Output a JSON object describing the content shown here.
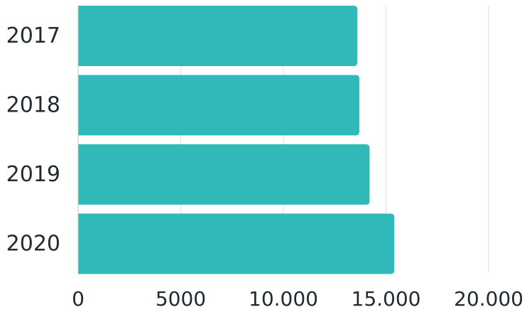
{
  "chart_data": {
    "type": "bar",
    "orientation": "horizontal",
    "categories": [
      "2017",
      "2018",
      "2019",
      "2020"
    ],
    "values": [
      13600,
      13700,
      14200,
      15400
    ],
    "xlim": [
      0,
      20000
    ],
    "xticks": [
      0,
      5000,
      10000,
      15000,
      20000
    ],
    "xtick_labels": [
      "0",
      "5000",
      "10.000",
      "15.000",
      "20.000"
    ],
    "grid": true,
    "bar_color": "#31b9b9",
    "grid_color": "#dcdcdc",
    "axis_color": "#c8c8c8",
    "text_color": "#1f2a33"
  }
}
